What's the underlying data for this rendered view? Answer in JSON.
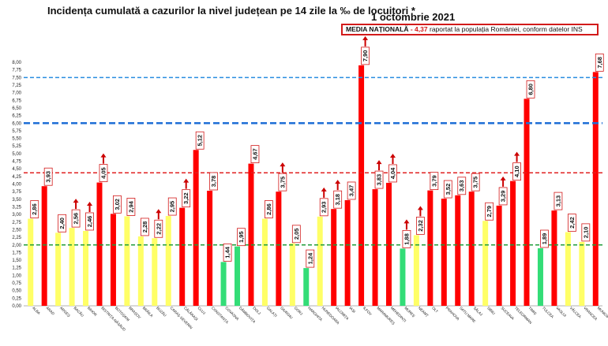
{
  "header": {
    "title": "Incidența cumulată a cazurilor la nivel județean pe 14 zile la ‰ de locuitori *",
    "date": "1 octombrie 2021"
  },
  "note": {
    "label": "MEDIA NAȚIONALĂ",
    "value": "- 4,37",
    "text": "raportat la populația României, conform datelor INS"
  },
  "colors": {
    "red": "#ff0000",
    "yellow": "#ffff66",
    "green": "#33dd77",
    "arrow": "#cc0000",
    "national_line": "#e02020",
    "line_2": "#1f9c3a",
    "line_6": "#1f6fd6",
    "line_75": "#2a8de0"
  },
  "chart_data": {
    "type": "bar",
    "title": "Incidența cumulată a cazurilor la nivel județean pe 14 zile la ‰ de locuitori *",
    "ylim": [
      0,
      8
    ],
    "y_ticks": [
      "0,00",
      "0,25",
      "0,50",
      "0,75",
      "1,00",
      "1,25",
      "1,50",
      "1,75",
      "2,00",
      "2,25",
      "2,50",
      "2,75",
      "3,00",
      "3,25",
      "3,50",
      "3,75",
      "4,00",
      "4,25",
      "4,50",
      "4,75",
      "5,00",
      "5,25",
      "5,50",
      "5,75",
      "6,00",
      "6,25",
      "6,50",
      "6,75",
      "7,00",
      "7,25",
      "7,50",
      "7,75",
      "8,00"
    ],
    "categories": [
      "ALBA",
      "ARAD",
      "ARGEȘ",
      "BACĂU",
      "BIHOR",
      "BISTRIȚA-NĂSĂUD",
      "BOTOȘANI",
      "BRAȘOV",
      "BRĂILA",
      "BUZĂU",
      "CARAȘ-SEVERIN",
      "CĂLĂRAȘI",
      "CLUJ",
      "CONSTANȚA",
      "COVASNA",
      "DÂMBOVIȚA",
      "DOLJ",
      "GALAȚI",
      "GIURGIU",
      "GORJ",
      "HARGHITA",
      "HUNEDOARA",
      "IALOMIȚA",
      "IAȘI",
      "ILFOV",
      "MARAMUREȘ",
      "MEHEDINȚI",
      "MUREȘ",
      "NEAMȚ",
      "OLT",
      "PRAHOVA",
      "SATU MARE",
      "SĂLAJ",
      "SIBIU",
      "SUCEAVA",
      "TELEORMAN",
      "TIMIȘ",
      "TULCEA",
      "VASLUI",
      "VÂLCEA",
      "VRANCEA",
      "MUNICIPIUL BUCUREȘTI"
    ],
    "values": [
      2.86,
      3.93,
      2.4,
      2.56,
      2.46,
      4.05,
      3.02,
      2.94,
      2.28,
      2.22,
      2.95,
      3.22,
      5.12,
      3.78,
      1.44,
      1.95,
      4.67,
      2.86,
      3.75,
      2.05,
      1.24,
      2.93,
      3.18,
      3.47,
      7.9,
      3.83,
      4.04,
      1.88,
      2.32,
      3.79,
      3.52,
      3.63,
      3.75,
      2.79,
      3.29,
      4.1,
      6.8,
      1.89,
      3.13,
      2.42,
      2.1,
      7.68
    ],
    "labels": [
      "2,86",
      "3,93",
      "2,40",
      "2,56",
      "2,46",
      "4,05",
      "3,02",
      "2,94",
      "2,28",
      "2,22",
      "2,95",
      "3,22",
      "5,12",
      "3,78",
      "1,44",
      "1,95",
      "4,67",
      "2,86",
      "3,75",
      "2,05",
      "1,24",
      "2,93",
      "3,18",
      "3,47",
      "7,90",
      "3,83",
      "4,04",
      "1,88",
      "2,32",
      "3,79",
      "3,52",
      "3,63",
      "3,75",
      "2,79",
      "3,29",
      "4,10",
      "6,80",
      "1,89",
      "3,13",
      "2,42",
      "2,10",
      "7,68"
    ],
    "bar_colors": [
      "yellow",
      "red",
      "yellow",
      "yellow",
      "yellow",
      "red",
      "red",
      "yellow",
      "yellow",
      "yellow",
      "yellow",
      "red",
      "red",
      "red",
      "green",
      "green",
      "red",
      "yellow",
      "red",
      "yellow",
      "green",
      "yellow",
      "red",
      "red",
      "red",
      "red",
      "red",
      "green",
      "yellow",
      "red",
      "red",
      "red",
      "red",
      "yellow",
      "red",
      "red",
      "red",
      "green",
      "red",
      "yellow",
      "yellow",
      "red"
    ],
    "up_arrows": [
      3,
      4,
      5,
      9,
      11,
      18,
      21,
      22,
      24,
      25,
      26,
      27,
      28,
      34,
      35
    ],
    "reference_lines": [
      {
        "value": 2.0,
        "color": "line_2"
      },
      {
        "value": 4.37,
        "color": "national_line"
      },
      {
        "value": 6.0,
        "color": "line_6"
      },
      {
        "value": 7.5,
        "color": "line_75"
      }
    ],
    "grid": false,
    "legend": "none"
  }
}
